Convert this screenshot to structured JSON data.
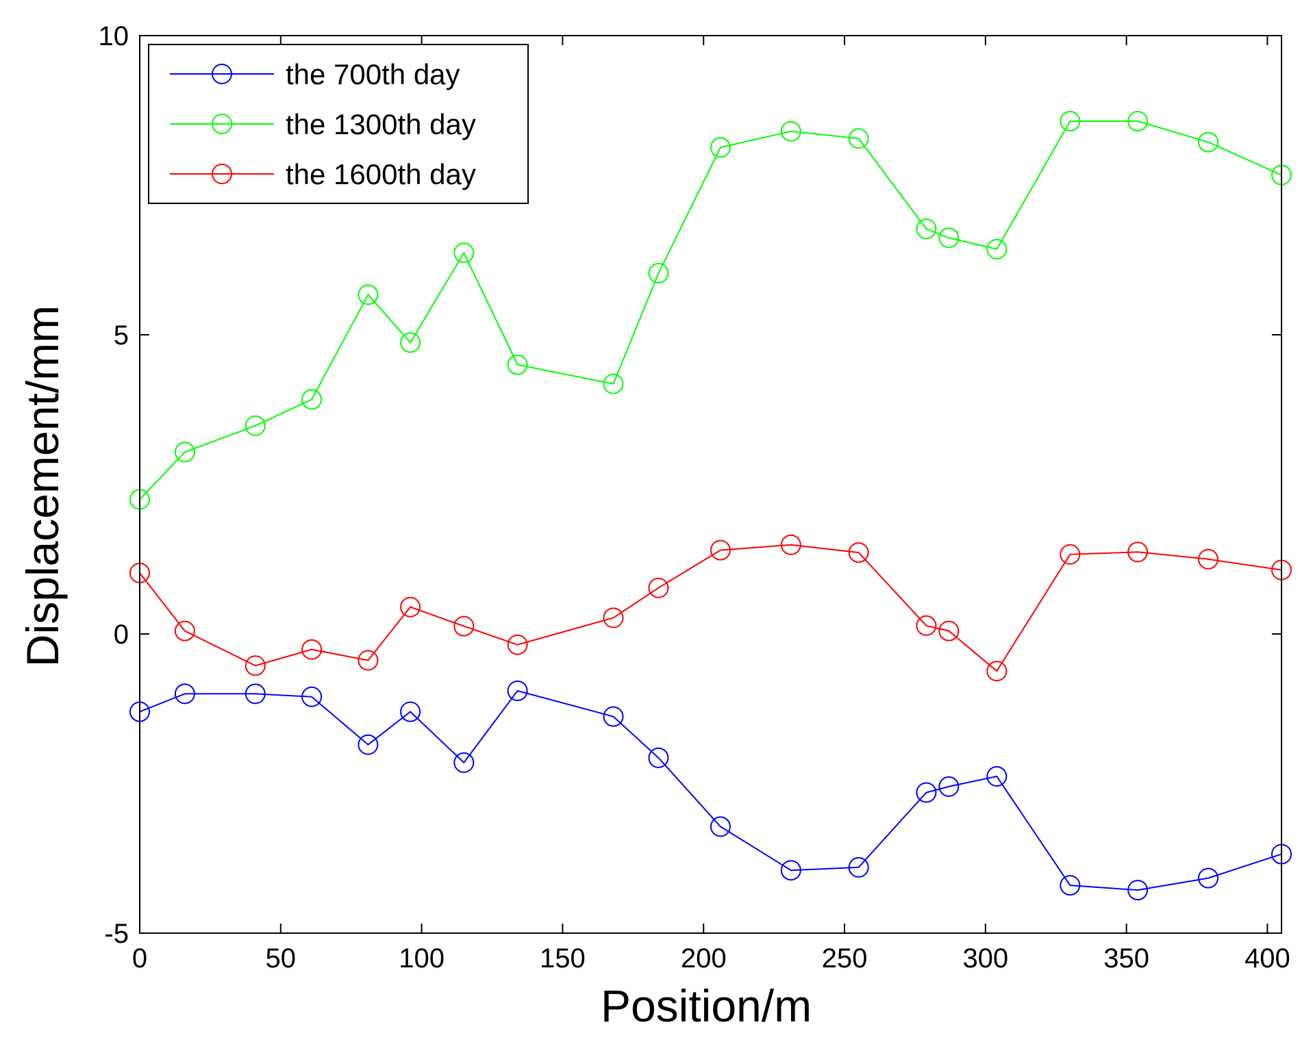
{
  "chart_data": {
    "type": "line",
    "title": "",
    "xlabel": "Position/m",
    "ylabel": "Displacement/mm",
    "xlim": [
      0,
      405
    ],
    "ylim": [
      -5,
      10
    ],
    "xticks": [
      0,
      50,
      100,
      150,
      200,
      250,
      300,
      350,
      400
    ],
    "yticks": [
      -5,
      0,
      5,
      10
    ],
    "xtick_labels": [
      "0",
      "50",
      "100",
      "150",
      "200",
      "250",
      "300",
      "350",
      "400"
    ],
    "ytick_labels": [
      "-5",
      "0",
      "5",
      "10"
    ],
    "grid": false,
    "legend_position": "top-left",
    "marker": "circle",
    "x": [
      0,
      16,
      41,
      61,
      81,
      96,
      115,
      134,
      168,
      184,
      206,
      231,
      255,
      279,
      287,
      304,
      330,
      354,
      379,
      405
    ],
    "series": [
      {
        "name": "the 700th day",
        "color": "#0000ff",
        "values": [
          -1.3,
          -1.0,
          -1.0,
          -1.05,
          -1.85,
          -1.3,
          -2.15,
          -0.95,
          -1.38,
          -2.07,
          -3.22,
          -3.95,
          -3.9,
          -2.65,
          -2.55,
          -2.38,
          -4.2,
          -4.28,
          -4.08,
          -3.68
        ]
      },
      {
        "name": "the 1300th day",
        "color": "#00ff00",
        "values": [
          2.25,
          3.04,
          3.48,
          3.92,
          5.67,
          4.87,
          6.37,
          4.5,
          4.18,
          6.03,
          8.13,
          8.4,
          8.28,
          6.77,
          6.62,
          6.43,
          8.57,
          8.57,
          8.22,
          7.67
        ]
      },
      {
        "name": "the 1600th day",
        "color": "#ff0000",
        "values": [
          1.02,
          0.05,
          -0.53,
          -0.26,
          -0.44,
          0.45,
          0.13,
          -0.18,
          0.27,
          0.77,
          1.4,
          1.49,
          1.36,
          0.14,
          0.05,
          -0.62,
          1.33,
          1.37,
          1.25,
          1.07
        ]
      }
    ]
  }
}
